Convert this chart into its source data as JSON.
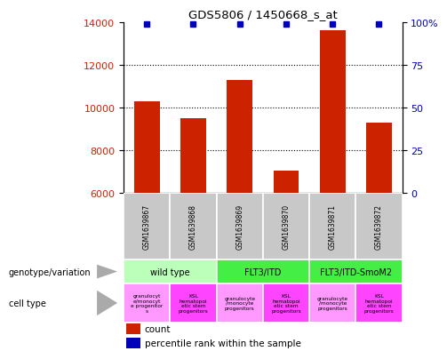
{
  "title": "GDS5806 / 1450668_s_at",
  "samples": [
    "GSM1639867",
    "GSM1639868",
    "GSM1639869",
    "GSM1639870",
    "GSM1639871",
    "GSM1639872"
  ],
  "counts": [
    10300,
    9500,
    11300,
    7050,
    13600,
    9300
  ],
  "percentile_ranks": [
    99,
    99,
    99,
    99,
    99,
    99
  ],
  "ylim_left": [
    6000,
    14000
  ],
  "ylim_right": [
    0,
    100
  ],
  "yticks_left": [
    6000,
    8000,
    10000,
    12000,
    14000
  ],
  "yticks_right": [
    0,
    25,
    50,
    75,
    100
  ],
  "bar_color": "#CC2200",
  "dot_color": "#0000BB",
  "label_color_left": "#CC2200",
  "label_color_right": "#0000BB",
  "sample_box_color": "#C8C8C8",
  "geno_groups": [
    {
      "label": "wild type",
      "start": 0,
      "end": 2,
      "color": "#BBFFBB"
    },
    {
      "label": "FLT3/ITD",
      "start": 2,
      "end": 4,
      "color": "#44EE44"
    },
    {
      "label": "FLT3/ITD-SmoM2",
      "start": 4,
      "end": 6,
      "color": "#44EE44"
    }
  ],
  "cell_colors": [
    "#FF99FF",
    "#FF44FF",
    "#FF99FF",
    "#FF44FF",
    "#FF99FF",
    "#FF44FF"
  ],
  "cell_labels": [
    "granulocyt\ne/monocyt\ne progenitor\ns",
    "KSL\nhematopoi\netic stem\nprogenitors",
    "granulocyte\n/monocyte\nprogenitors",
    "KSL\nhematopoi\netic stem\nprogenitors",
    "granulocyte\n/monocyte\nprogenitors",
    "KSL\nhematopoi\netic stem\nprogenitors"
  ],
  "legend_count_label": "count",
  "legend_pct_label": "percentile rank within the sample",
  "genotype_row_label": "genotype/variation",
  "cell_type_row_label": "cell type"
}
